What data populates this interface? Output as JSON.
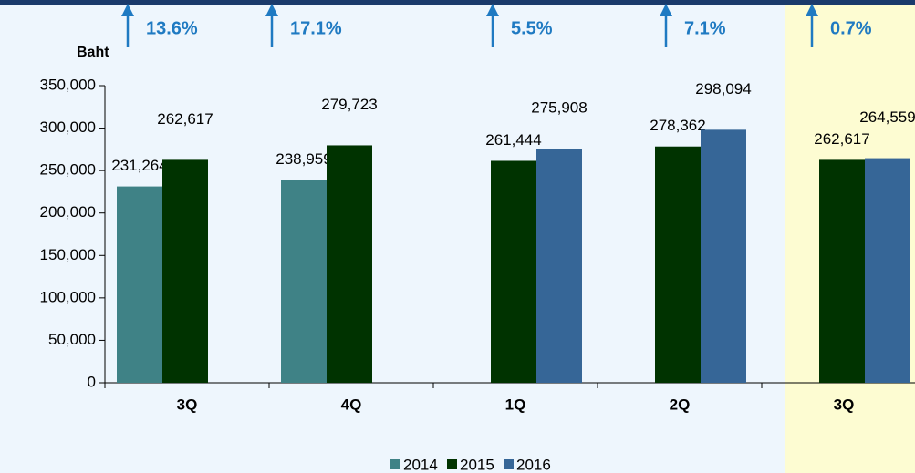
{
  "chart_data": {
    "type": "bar",
    "y_label": "Baht",
    "categories": [
      "3Q",
      "4Q",
      "1Q",
      "2Q",
      "3Q"
    ],
    "series": [
      {
        "name": "2014",
        "color": "#3f8286",
        "values": [
          231264,
          238959,
          null,
          null,
          null
        ],
        "value_labels": [
          "231,264",
          "238,959",
          null,
          null,
          null
        ]
      },
      {
        "name": "2015",
        "color": "#003300",
        "values": [
          262617,
          279723,
          261444,
          278362,
          262617
        ],
        "value_labels": [
          "262,617",
          "279,723",
          "261,444",
          "278,362",
          "262,617"
        ]
      },
      {
        "name": "2016",
        "color": "#366697",
        "values": [
          null,
          null,
          275908,
          298094,
          264559
        ],
        "value_labels": [
          null,
          null,
          "275,908",
          "298,094",
          "264,559"
        ]
      }
    ],
    "annotations": [
      "13.6%",
      "17.1%",
      "5.5%",
      "7.1%",
      "0.7%"
    ],
    "ylim": [
      0,
      350000
    ],
    "yticks": [
      0,
      {
        "value": 50000,
        "label": "50,000"
      },
      {
        "value": 100000,
        "label": "100,000"
      },
      {
        "value": 150000,
        "label": "150,000"
      },
      {
        "value": 200000,
        "label": "200,000"
      },
      {
        "value": 250000,
        "label": "250,000"
      },
      {
        "value": 300000,
        "label": "300,000"
      },
      {
        "value": 350000,
        "label": "350,000"
      }
    ],
    "legend": "bottom"
  }
}
